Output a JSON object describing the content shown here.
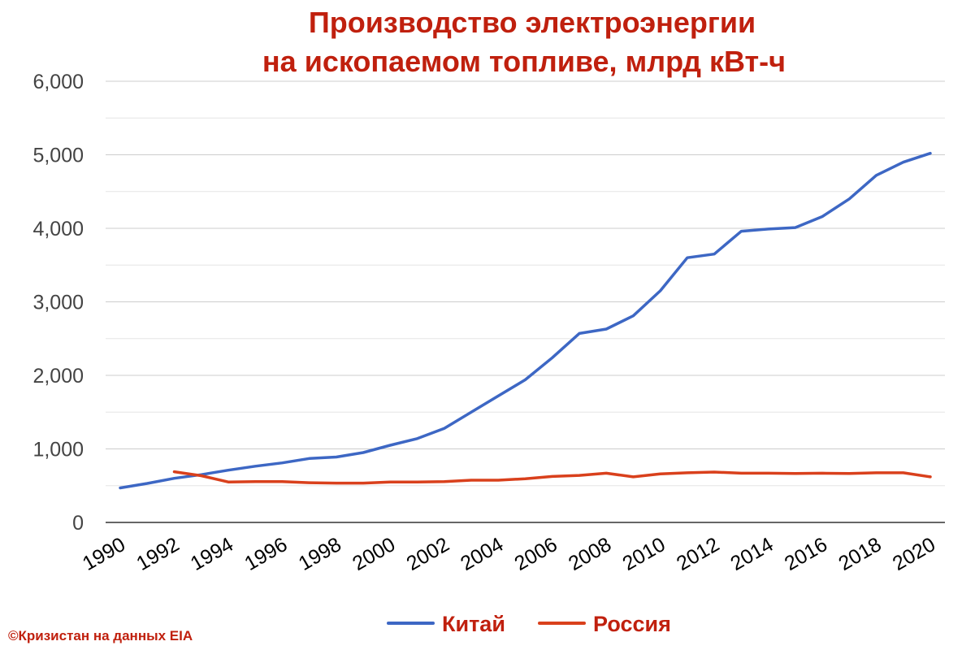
{
  "chart_data": {
    "type": "line",
    "title_lines": [
      "Производство электроэнергии",
      "на ископаемом топливе, млрд кВт-ч"
    ],
    "x": [
      1990,
      1991,
      1992,
      1993,
      1994,
      1995,
      1996,
      1997,
      1998,
      1999,
      2000,
      2001,
      2002,
      2003,
      2004,
      2005,
      2006,
      2007,
      2008,
      2009,
      2010,
      2011,
      2012,
      2013,
      2014,
      2015,
      2016,
      2017,
      2018,
      2019,
      2020
    ],
    "x_tick_labels": [
      "1990",
      "1992",
      "1994",
      "1996",
      "1998",
      "2000",
      "2002",
      "2004",
      "2006",
      "2008",
      "2010",
      "2012",
      "2014",
      "2016",
      "2018",
      "2020"
    ],
    "y_tick_labels": [
      "0",
      "1,000",
      "2,000",
      "3,000",
      "4,000",
      "5,000",
      "6,000"
    ],
    "ylim": [
      0,
      6000
    ],
    "xlim": [
      1990,
      2020
    ],
    "grid": true,
    "legend_position": "bottom",
    "series": [
      {
        "name": "Китай",
        "color": "#3d67c4",
        "values": [
          470,
          530,
          600,
          650,
          710,
          765,
          810,
          870,
          890,
          950,
          1050,
          1140,
          1280,
          1500,
          1720,
          1940,
          2240,
          2570,
          2630,
          2810,
          3150,
          3600,
          3650,
          3960,
          3990,
          4010,
          4160,
          4400,
          4720,
          4900,
          5020
        ]
      },
      {
        "name": "Россия",
        "color": "#d9401c",
        "values": [
          null,
          null,
          690,
          635,
          550,
          555,
          555,
          540,
          535,
          535,
          550,
          550,
          555,
          575,
          575,
          595,
          625,
          640,
          670,
          620,
          660,
          675,
          685,
          670,
          670,
          665,
          670,
          665,
          675,
          675,
          620
        ]
      }
    ],
    "title_color": "#c0200e",
    "source_note": "©Кризистан на данных EIA",
    "source_color": "#c0200e"
  }
}
